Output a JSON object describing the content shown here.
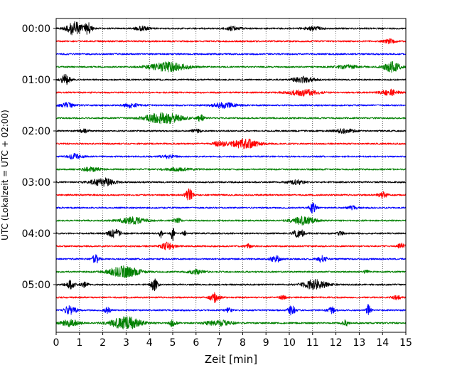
{
  "chart_data": {
    "type": "line",
    "subtype": "helicorder",
    "title": "",
    "xlabel": "Zeit  [min]",
    "ylabel": "UTC (Lokalzeit = UTC + 02:00)",
    "xlim": [
      0,
      15
    ],
    "x_ticks": [
      0,
      1,
      2,
      3,
      4,
      5,
      6,
      7,
      8,
      9,
      10,
      11,
      12,
      13,
      14,
      15
    ],
    "vertical_grid": "dotted at each minute",
    "row_interval_minutes": 15,
    "color_cycle": [
      "#000000",
      "#ff0000",
      "#0000ff",
      "#008000"
    ],
    "y_tick_labels": [
      {
        "row": 0,
        "label": "00:00"
      },
      {
        "row": 4,
        "label": "01:00"
      },
      {
        "row": 8,
        "label": "02:00"
      },
      {
        "row": 12,
        "label": "03:00"
      },
      {
        "row": 16,
        "label": "04:00"
      },
      {
        "row": 20,
        "label": "05:00"
      }
    ],
    "traces": [
      {
        "row": 0,
        "color": "#000000",
        "bursts": [
          [
            0.8,
            0.75,
            1.0
          ],
          [
            1.4,
            0.3,
            0.9
          ],
          [
            3.7,
            0.6,
            0.3
          ],
          [
            7.6,
            0.6,
            0.3
          ],
          [
            11.0,
            0.8,
            0.25
          ]
        ]
      },
      {
        "row": 1,
        "color": "#ff0000",
        "bursts": [
          [
            14.3,
            0.5,
            0.3
          ]
        ]
      },
      {
        "row": 2,
        "color": "#0000ff",
        "bursts": []
      },
      {
        "row": 3,
        "color": "#008000",
        "bursts": [
          [
            4.8,
            1.6,
            0.7
          ],
          [
            14.4,
            0.7,
            0.75
          ],
          [
            12.5,
            1.0,
            0.25
          ]
        ]
      },
      {
        "row": 4,
        "color": "#000000",
        "bursts": [
          [
            0.4,
            0.4,
            0.75
          ],
          [
            10.6,
            0.9,
            0.45
          ]
        ]
      },
      {
        "row": 5,
        "color": "#ff0000",
        "bursts": [
          [
            10.6,
            1.2,
            0.5
          ],
          [
            14.3,
            0.7,
            0.45
          ]
        ]
      },
      {
        "row": 6,
        "color": "#0000ff",
        "bursts": [
          [
            0.5,
            0.6,
            0.35
          ],
          [
            3.2,
            0.6,
            0.35
          ],
          [
            7.2,
            1.0,
            0.4
          ]
        ]
      },
      {
        "row": 7,
        "color": "#008000",
        "bursts": [
          [
            4.6,
            1.5,
            0.85
          ],
          [
            6.2,
            0.25,
            0.55
          ]
        ]
      },
      {
        "row": 8,
        "color": "#000000",
        "bursts": [
          [
            1.2,
            0.4,
            0.25
          ],
          [
            6.0,
            0.4,
            0.25
          ],
          [
            12.4,
            0.8,
            0.35
          ]
        ]
      },
      {
        "row": 9,
        "color": "#ff0000",
        "bursts": [
          [
            8.1,
            1.2,
            0.7
          ],
          [
            7.0,
            0.5,
            0.4
          ]
        ]
      },
      {
        "row": 10,
        "color": "#0000ff",
        "bursts": [
          [
            0.8,
            0.6,
            0.4
          ],
          [
            4.8,
            0.6,
            0.25
          ]
        ]
      },
      {
        "row": 11,
        "color": "#008000",
        "bursts": [
          [
            1.5,
            0.8,
            0.3
          ],
          [
            5.2,
            1.2,
            0.2
          ]
        ]
      },
      {
        "row": 12,
        "color": "#000000",
        "bursts": [
          [
            2.0,
            1.0,
            0.6
          ],
          [
            10.3,
            0.7,
            0.35
          ]
        ]
      },
      {
        "row": 13,
        "color": "#ff0000",
        "bursts": [
          [
            5.7,
            0.3,
            0.9
          ],
          [
            14.0,
            0.4,
            0.45
          ]
        ]
      },
      {
        "row": 14,
        "color": "#0000ff",
        "bursts": [
          [
            11.0,
            0.3,
            0.75
          ],
          [
            12.7,
            0.4,
            0.25
          ]
        ]
      },
      {
        "row": 15,
        "color": "#008000",
        "bursts": [
          [
            3.3,
            1.1,
            0.5
          ],
          [
            10.6,
            1.0,
            0.6
          ],
          [
            5.2,
            0.3,
            0.45
          ]
        ]
      },
      {
        "row": 16,
        "color": "#000000",
        "bursts": [
          [
            2.5,
            0.5,
            0.6
          ],
          [
            4.5,
            0.12,
            1.1
          ],
          [
            5.0,
            0.15,
            1.1
          ],
          [
            5.5,
            0.15,
            0.5
          ],
          [
            10.4,
            0.4,
            0.8
          ],
          [
            12.2,
            0.3,
            0.25
          ]
        ]
      },
      {
        "row": 17,
        "color": "#ff0000",
        "bursts": [
          [
            4.8,
            0.6,
            0.55
          ],
          [
            8.2,
            0.3,
            0.3
          ],
          [
            14.8,
            0.3,
            0.45
          ]
        ]
      },
      {
        "row": 18,
        "color": "#0000ff",
        "bursts": [
          [
            1.7,
            0.3,
            0.75
          ],
          [
            9.4,
            0.4,
            0.55
          ],
          [
            11.4,
            0.4,
            0.5
          ]
        ]
      },
      {
        "row": 19,
        "color": "#008000",
        "bursts": [
          [
            2.9,
            1.3,
            0.85
          ],
          [
            6.0,
            0.7,
            0.3
          ],
          [
            13.3,
            0.2,
            0.3
          ]
        ]
      },
      {
        "row": 20,
        "color": "#000000",
        "bursts": [
          [
            0.6,
            0.4,
            0.6
          ],
          [
            4.2,
            0.3,
            0.9
          ],
          [
            11.1,
            1.0,
            0.75
          ],
          [
            1.2,
            0.3,
            0.4
          ]
        ]
      },
      {
        "row": 21,
        "color": "#ff0000",
        "bursts": [
          [
            6.8,
            0.4,
            0.7
          ],
          [
            14.6,
            0.4,
            0.3
          ],
          [
            9.7,
            0.3,
            0.25
          ]
        ]
      },
      {
        "row": 22,
        "color": "#0000ff",
        "bursts": [
          [
            0.6,
            0.5,
            0.7
          ],
          [
            2.2,
            0.3,
            0.45
          ],
          [
            10.1,
            0.3,
            0.7
          ],
          [
            11.8,
            0.3,
            0.55
          ],
          [
            13.4,
            0.2,
            0.9
          ],
          [
            7.4,
            0.3,
            0.35
          ]
        ]
      },
      {
        "row": 23,
        "color": "#008000",
        "bursts": [
          [
            3.0,
            1.3,
            0.95
          ],
          [
            0.6,
            0.8,
            0.5
          ],
          [
            5.0,
            0.3,
            0.55
          ],
          [
            7.0,
            1.2,
            0.4
          ],
          [
            12.4,
            0.3,
            0.45
          ]
        ]
      }
    ]
  }
}
